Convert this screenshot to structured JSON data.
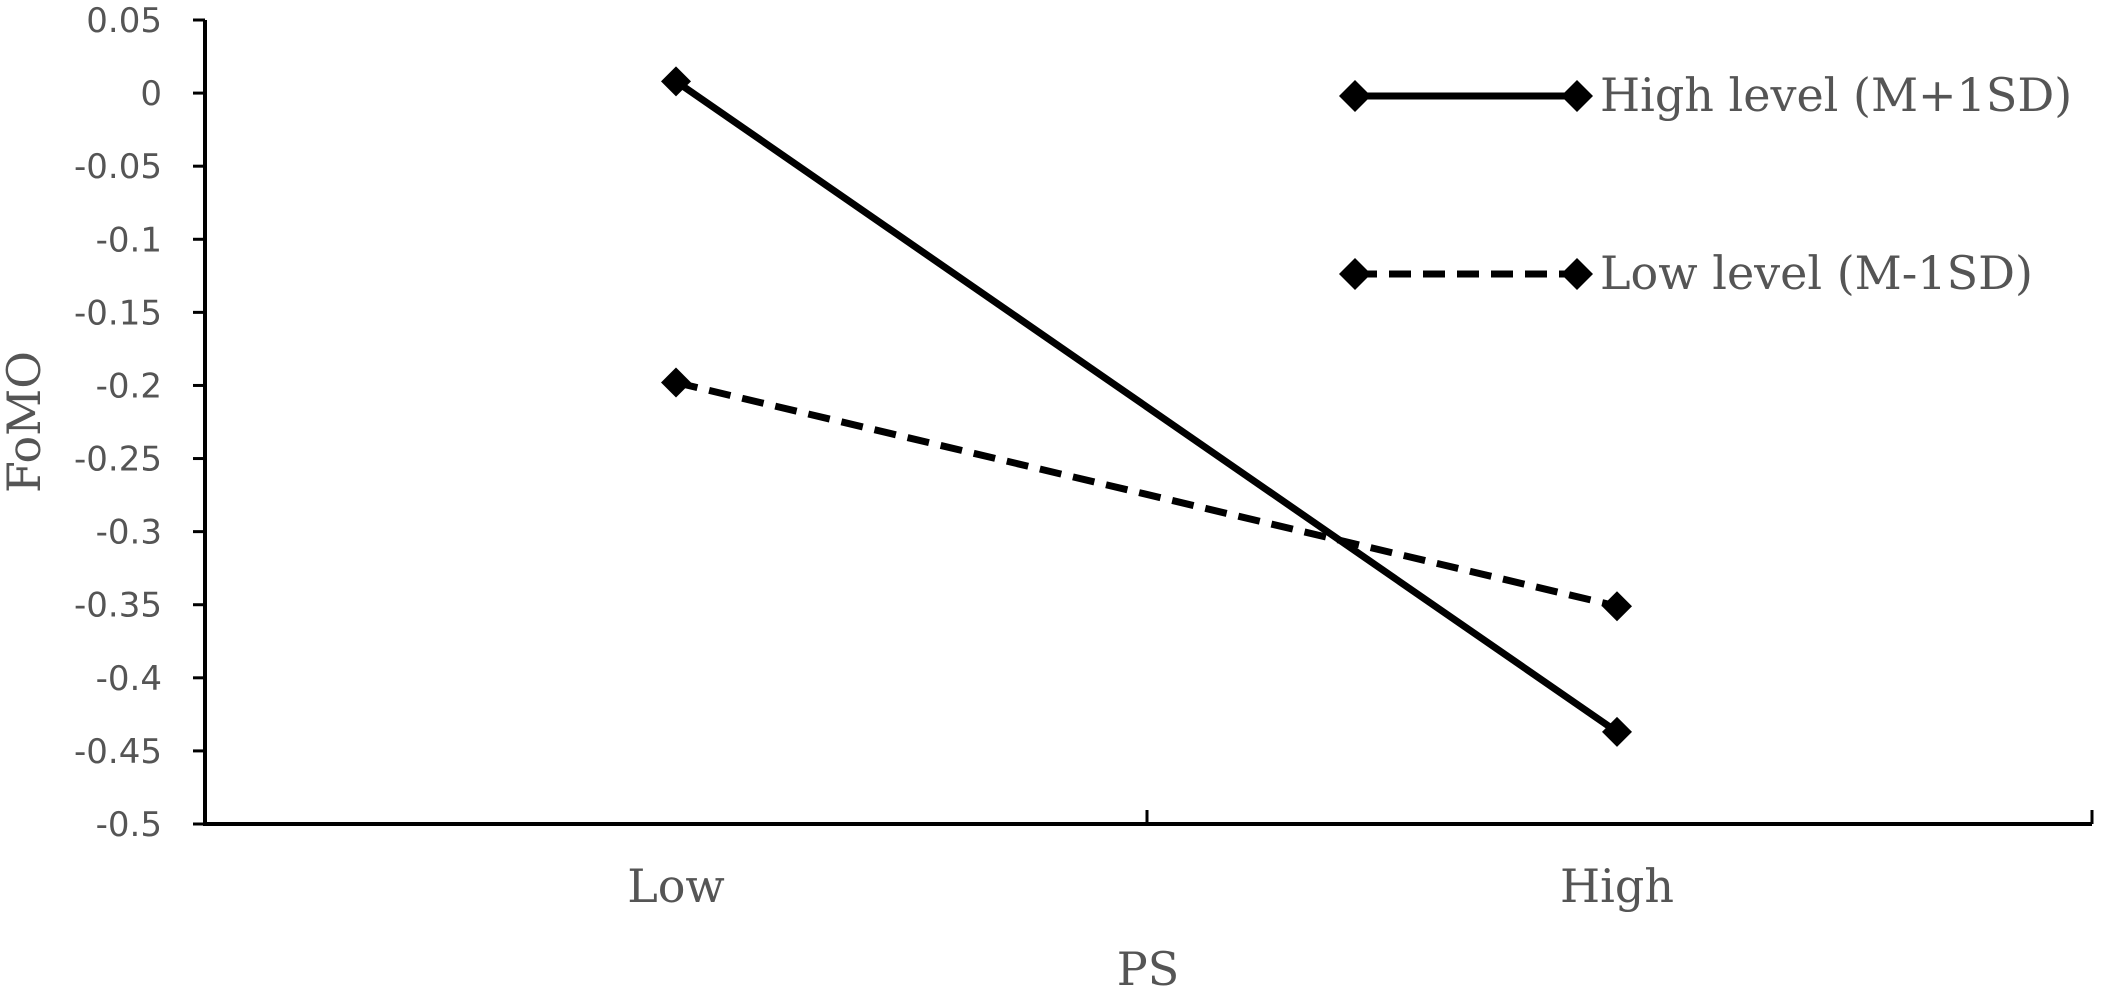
{
  "chart_data": {
    "type": "line",
    "title": "",
    "xlabel": "PS",
    "ylabel": "FoMO",
    "categories": [
      "Low",
      "High"
    ],
    "ylim": [
      -0.5,
      0.05
    ],
    "yticks": [
      0.05,
      0,
      -0.05,
      -0.1,
      -0.15,
      -0.2,
      -0.25,
      -0.3,
      -0.35,
      -0.4,
      -0.45,
      -0.5
    ],
    "ytick_labels": [
      "0.05",
      "0",
      "-0.05",
      "-0.1",
      "-0.15",
      "-0.2",
      "-0.25",
      "-0.3",
      "-0.35",
      "-0.4",
      "-0.45",
      "-0.5"
    ],
    "grid": false,
    "legend_position": "top-right",
    "series": [
      {
        "name": "High level (M+1SD)",
        "values": [
          0.008,
          -0.437
        ],
        "line_style": "solid",
        "marker": "diamond",
        "color": "#000000"
      },
      {
        "name": "Low level (M-1SD)",
        "values": [
          -0.198,
          -0.351
        ],
        "line_style": "dashed",
        "marker": "diamond",
        "color": "#000000"
      }
    ]
  }
}
